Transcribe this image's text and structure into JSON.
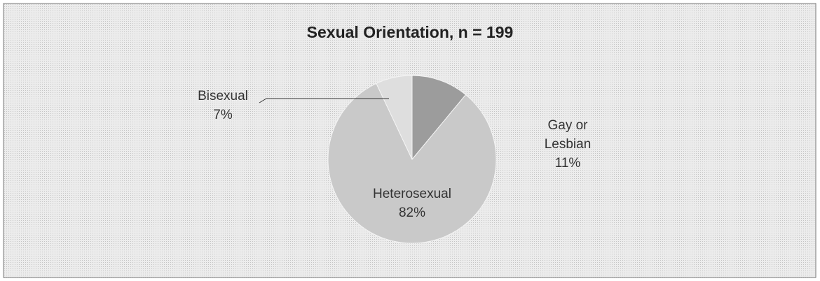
{
  "chart_data": {
    "type": "pie",
    "title": "Sexual Orientation, n = 199",
    "categories": [
      "Gay or Lesbian",
      "Heterosexual",
      "Bisexual"
    ],
    "values": [
      11,
      82,
      7
    ],
    "value_labels": [
      "11%",
      "82%",
      "7%"
    ],
    "colors": [
      "#9c9c9c",
      "#c9c9c9",
      "#dedede"
    ]
  }
}
